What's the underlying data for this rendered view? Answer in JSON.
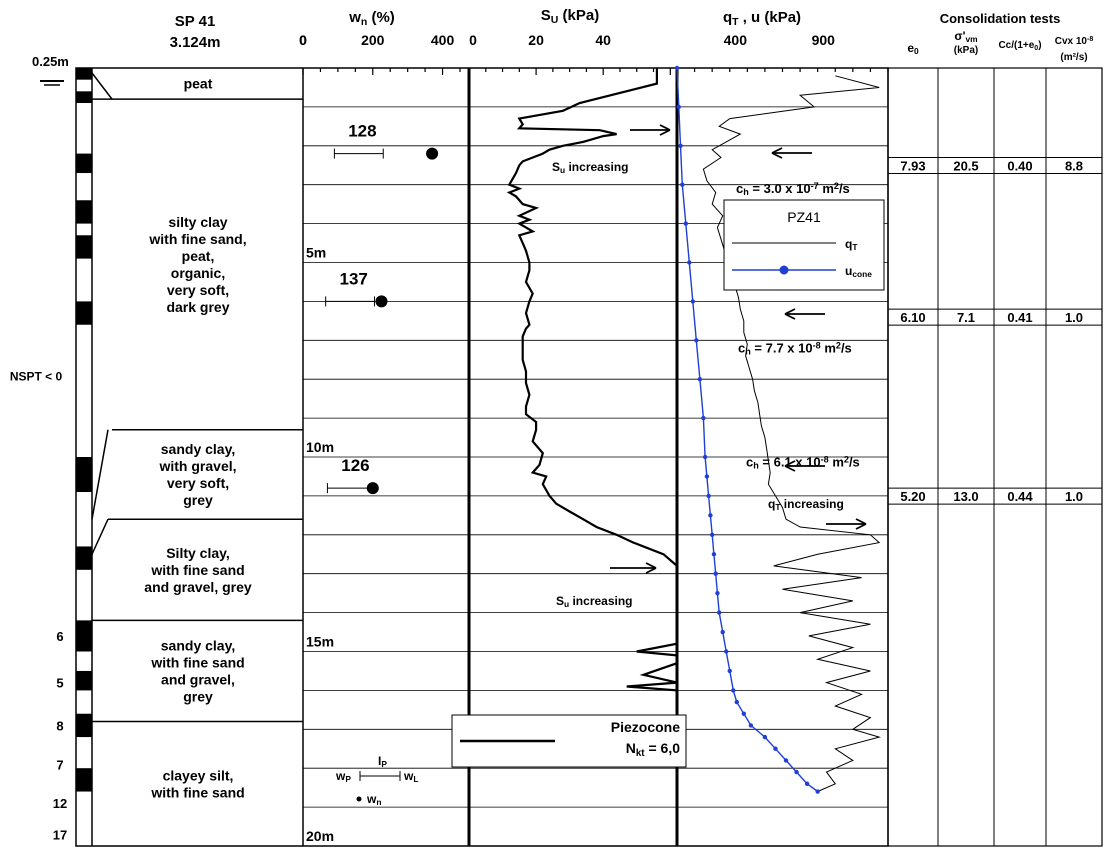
{
  "chart_data": {
    "type": "line",
    "log": {
      "title": "SP 41",
      "elevation": "3.124m",
      "water_level": "0.25m",
      "nspt_label": "NSPT < 0",
      "nspt_values": [
        "6",
        "5",
        "8",
        "7",
        "12",
        "17"
      ],
      "layers": [
        {
          "name": "peat",
          "top": 0.0,
          "bottom": 0.8
        },
        {
          "name": "silty clay\nwith fine sand,\npeat,\norganic,\nvery soft,\ndark grey",
          "top": 0.8,
          "bottom": 9.3
        },
        {
          "name": "sandy clay,\nwith gravel,\nvery soft,\ngrey",
          "top": 9.3,
          "bottom": 11.6
        },
        {
          "name": "Silty clay,\nwith fine sand\nand gravel, grey",
          "top": 11.6,
          "bottom": 14.2
        },
        {
          "name": "sandy clay,\nwith fine sand\nand gravel,\ngrey",
          "top": 14.2,
          "bottom": 16.8
        },
        {
          "name": "clayey silt,\nwith fine sand",
          "top": 16.8,
          "bottom": 20.0
        }
      ]
    },
    "wn_panel": {
      "xlabel": "wn (%)",
      "xlim": [
        0,
        450
      ],
      "ticks": [
        "0",
        "200",
        "400"
      ],
      "tick_values": [
        0,
        200,
        400
      ],
      "depth_labels": [
        {
          "text": "5m",
          "depth": 5
        },
        {
          "text": "10m",
          "depth": 10
        },
        {
          "text": "15m",
          "depth": 15
        },
        {
          "text": "20m",
          "depth": 20
        }
      ],
      "points": [
        {
          "depth": 2.2,
          "wn": 370,
          "wp": 90,
          "wl": 230,
          "ip_label": "128"
        },
        {
          "depth": 6.0,
          "wn": 225,
          "wp": 65,
          "wl": 205,
          "ip_label": "137"
        },
        {
          "depth": 10.8,
          "wn": 200,
          "wp": 70,
          "wl": 200,
          "ip_label": "126"
        }
      ],
      "legend": {
        "ip": "IP",
        "wp": "wP",
        "wl": "wL",
        "wn": "wn"
      }
    },
    "su_panel": {
      "xlabel": "Su (kPa)",
      "xlim": [
        0,
        62
      ],
      "ticks": [
        "0",
        "20",
        "40"
      ],
      "tick_values": [
        0,
        20,
        40
      ],
      "annotations": [
        "Su increasing",
        "Su increasing"
      ],
      "legend": {
        "name": "Piezocone",
        "nkt": "Nkt = 6,0"
      },
      "series": [
        {
          "depth": [
            0.0,
            0.4,
            0.9,
            1.1,
            1.3,
            1.45,
            1.55,
            1.6,
            1.7,
            1.75,
            1.9,
            2.0,
            2.1,
            2.2,
            2.4,
            2.5,
            2.7,
            2.85,
            3.0,
            3.1,
            3.2,
            3.3,
            3.5,
            3.6,
            3.8,
            3.9,
            4.0,
            4.2,
            4.3,
            4.5,
            4.7,
            5.0,
            5.2,
            5.5,
            5.8,
            6.0,
            6.3,
            6.6,
            6.7,
            6.9,
            7.2,
            7.5,
            7.8,
            8.1,
            8.4,
            8.7,
            8.9,
            9.1,
            9.3,
            9.6,
            9.9,
            10.2,
            10.4,
            10.5,
            10.7,
            11.0,
            11.2,
            11.4,
            11.6,
            11.8,
            12.0,
            12.2,
            12.5,
            12.8,
            13.1,
            13.4,
            13.7,
            14.0,
            14.3,
            14.6,
            14.8,
            15.0,
            15.1,
            15.3,
            15.6,
            15.8,
            15.9,
            16.0,
            16.3,
            16.6,
            16.8
          ],
          "su": [
            56,
            56,
            33,
            28,
            15,
            16,
            15,
            39,
            44,
            40,
            34,
            28,
            24,
            22,
            16,
            15,
            14,
            13,
            12,
            15,
            12,
            14,
            16,
            20,
            15,
            18,
            15,
            19,
            15,
            16,
            17,
            18,
            18,
            17,
            19,
            18,
            17,
            18,
            17,
            16,
            16,
            16,
            17,
            17,
            18,
            17,
            17,
            20,
            20,
            19,
            22,
            21,
            19,
            23,
            22,
            24,
            26,
            30,
            34,
            38,
            44,
            49,
            58,
            62,
            62,
            62,
            62,
            62,
            62,
            62,
            62,
            50,
            62,
            62,
            52,
            62,
            47,
            62,
            62,
            62,
            62
          ]
        }
      ]
    },
    "qt_panel": {
      "xlabel": "qT , u (kPa)",
      "xlim": [
        0,
        1200
      ],
      "ticks": [
        "400",
        "900"
      ],
      "tick_values": [
        400,
        900
      ],
      "legend": {
        "title": "PZ41",
        "qt": "qT",
        "u": "ucone"
      },
      "annotations": [
        {
          "text": "ch = 3.0 x 10-7 m2/s",
          "base": "ch = 3.0 x 10",
          "exp": "-7",
          "unit": "m",
          "unit_exp": "2",
          "tail": "/s",
          "depth": 2.9
        },
        {
          "text": "ch = 7.7 x 10-8 m2/s",
          "base": "ch = 7.7 x 10",
          "exp": "-8",
          "unit": "m",
          "unit_exp": "2",
          "tail": "/s",
          "depth": 7.0
        },
        {
          "text": "ch = 6.1 x 10-8 m2/s",
          "base": "ch = 6.1 x 10",
          "exp": "-8",
          "unit": "m",
          "unit_exp": "2",
          "tail": "/s",
          "depth": 10.5
        },
        {
          "text": "qT increasing",
          "depth": 12.0
        }
      ],
      "series": [
        {
          "name": "qT",
          "depth": [
            0.2,
            0.5,
            0.7,
            1.0,
            1.3,
            1.5,
            1.7,
            1.9,
            2.1,
            2.3,
            2.6,
            2.9,
            3.2,
            3.5,
            3.8,
            4.1,
            4.4,
            4.7,
            5.0,
            5.3,
            5.6,
            5.9,
            6.2,
            6.5,
            6.8,
            7.1,
            7.4,
            7.7,
            8.0,
            8.3,
            8.6,
            8.9,
            9.2,
            9.5,
            9.8,
            10.1,
            10.4,
            10.7,
            11.0,
            11.3,
            11.6,
            11.8,
            12.0,
            12.2,
            12.5,
            12.8,
            13.1,
            13.4,
            13.7,
            14.0,
            14.3,
            14.6,
            14.9,
            15.2,
            15.5,
            15.8,
            16.1,
            16.4,
            16.7,
            17.0,
            17.2,
            17.5,
            17.8,
            18.1,
            18.4,
            18.6
          ],
          "qt": [
            900,
            1150,
            700,
            780,
            300,
            240,
            360,
            280,
            200,
            250,
            150,
            170,
            220,
            200,
            260,
            230,
            250,
            270,
            300,
            320,
            330,
            350,
            360,
            380,
            380,
            400,
            390,
            410,
            430,
            440,
            460,
            470,
            480,
            500,
            510,
            520,
            530,
            520,
            560,
            600,
            620,
            700,
            1100,
            1150,
            800,
            550,
            1050,
            600,
            1000,
            700,
            1100,
            750,
            1000,
            800,
            1100,
            850,
            1050,
            900,
            1100,
            1000,
            1150,
            900,
            1000,
            850,
            900,
            800
          ]
        },
        {
          "name": "ucone",
          "depth": [
            0.0,
            1.0,
            2.0,
            3.0,
            4.0,
            5.0,
            6.0,
            7.0,
            8.0,
            9.0,
            10.0,
            10.5,
            11.0,
            11.5,
            12.0,
            12.5,
            13.0,
            13.5,
            14.0,
            14.5,
            15.0,
            15.5,
            16.0,
            16.3,
            16.6,
            16.9,
            17.2,
            17.5,
            17.8,
            18.1,
            18.4,
            18.6
          ],
          "u": [
            0,
            10,
            20,
            30,
            50,
            70,
            90,
            110,
            130,
            150,
            160,
            170,
            180,
            190,
            200,
            210,
            220,
            230,
            240,
            260,
            280,
            300,
            320,
            340,
            380,
            420,
            500,
            560,
            620,
            680,
            740,
            800
          ]
        }
      ]
    },
    "consolidation": {
      "title": "Consolidation tests",
      "headers": [
        {
          "main": "e",
          "sub": "0"
        },
        {
          "main": "σ'",
          "sub": "vm",
          "unit": "(kPa)"
        },
        {
          "main": "Cc/(1+e",
          "sub": "0",
          "tail": ")"
        },
        {
          "main": "Cvx 10",
          "sup": "-8",
          "unit": "(m²/s)"
        }
      ],
      "rows": [
        {
          "depth": 2.3,
          "values": [
            "7.93",
            "20.5",
            "0.40",
            "8.8"
          ]
        },
        {
          "depth": 6.2,
          "values": [
            "6.10",
            "7.1",
            "0.41",
            "1.0"
          ]
        },
        {
          "depth": 10.8,
          "values": [
            "5.20",
            "13.0",
            "0.44",
            "1.0"
          ]
        }
      ]
    },
    "depth_range": [
      0,
      20
    ]
  }
}
